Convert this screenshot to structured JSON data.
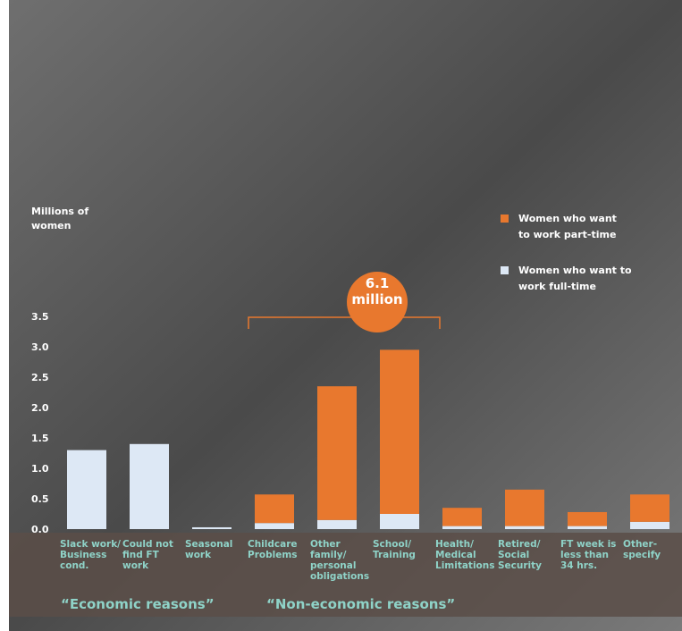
{
  "chart_data": {
    "type": "stacked-bar",
    "y_label": "Millions of\nwomen",
    "categories": [
      "Slack work/\nBusiness\ncond.",
      "Could not\nfind FT\nwork",
      "Seasonal\nwork",
      "Childcare\nProblems",
      "Other\nfamily/\npersonal\nobligations",
      "School/\nTraining",
      "Health/\nMedical\nLimitations",
      "Retired/\nSocial\nSecurity",
      "FT week is\nless than\n34 hrs.",
      "Other-\nspecify"
    ],
    "series": [
      {
        "name": "Women who want to\nwork full-time",
        "color": "#dde8f5",
        "values": [
          1.3,
          1.4,
          0.03,
          0.1,
          0.15,
          0.25,
          0.05,
          0.05,
          0.05,
          0.12
        ]
      },
      {
        "name": "Women who want\nto work part-time",
        "color": "#e8782e",
        "values": [
          0,
          0,
          0,
          0.47,
          2.2,
          2.7,
          0.3,
          0.6,
          0.23,
          0.45
        ]
      }
    ],
    "ylim": [
      0,
      3.5
    ],
    "yticks": [
      {
        "value": 0,
        "label": "0.0"
      },
      0.5,
      {
        "value": 1,
        "label": "1.0"
      },
      1.5,
      {
        "value": 2,
        "label": "2.0"
      },
      2.5,
      {
        "value": 3,
        "label": "3.0"
      },
      3.5
    ],
    "annotations": {
      "total": "6.1\nmillion",
      "groups": [
        "“Economic reasons”",
        "“Non-economic reasons”"
      ]
    }
  }
}
